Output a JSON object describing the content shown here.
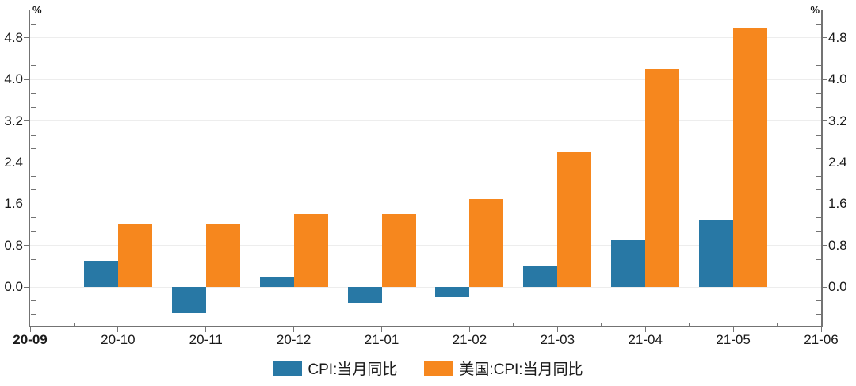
{
  "chart_data": {
    "type": "bar",
    "unit": "%",
    "x_axis_labels": [
      "20-09",
      "20-10",
      "20-11",
      "20-12",
      "21-01",
      "21-02",
      "21-03",
      "21-04",
      "21-05",
      "21-06"
    ],
    "bar_categories": [
      "20-10",
      "20-11",
      "20-12",
      "21-01",
      "21-02",
      "21-03",
      "21-04",
      "21-05"
    ],
    "series": [
      {
        "name": "CPI:当月同比",
        "color": "#2878a5",
        "values": [
          0.5,
          -0.5,
          0.2,
          -0.3,
          -0.2,
          0.4,
          0.9,
          1.3
        ]
      },
      {
        "name": "美国:CPI:当月同比",
        "color": "#f6871e",
        "values": [
          1.2,
          1.2,
          1.4,
          1.4,
          1.7,
          2.6,
          4.2,
          5.0
        ]
      }
    ],
    "y_ticks": [
      0.0,
      0.8,
      1.6,
      2.4,
      3.2,
      4.0,
      4.8
    ],
    "y_tick_format": "one-decimal",
    "ylim": [
      -0.76,
      5.3
    ],
    "grid": true,
    "dual_y_axis": true,
    "legend_position": "bottom",
    "title": "",
    "xlabel": "",
    "ylabel": "%"
  },
  "colors": {
    "china_cpi_bar": "#2878a5",
    "us_cpi_bar": "#f6871e",
    "axis": "#737373",
    "grid": "#ededed",
    "text": "#1a1a1a"
  }
}
